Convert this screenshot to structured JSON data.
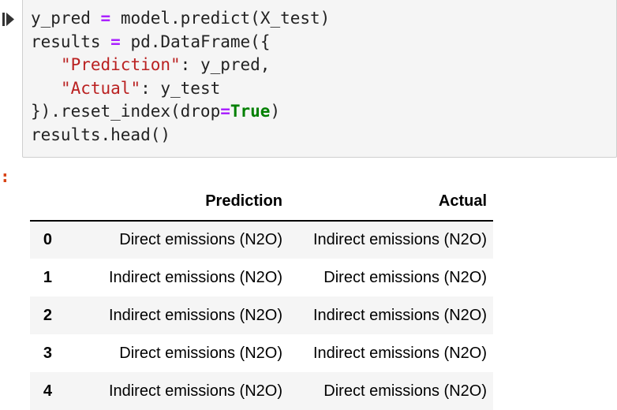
{
  "cell": {
    "code_lines": {
      "l1": {
        "a": "y_pred ",
        "op": "=",
        "b": " model.predict(X_test)"
      },
      "l2": {
        "a": "results ",
        "op": "=",
        "b": " pd.DataFrame({"
      },
      "l3": {
        "indent": "   ",
        "str": "\"Prediction\"",
        "b": ": y_pred,"
      },
      "l4": {
        "indent": "   ",
        "str": "\"Actual\"",
        "b": ": y_test"
      },
      "l5": {
        "a": "}).reset_index(drop",
        "op": "=",
        "kw": "True",
        "b": ")"
      },
      "l6": {
        "a": "results.head()"
      }
    },
    "output_prompt": ":"
  },
  "table": {
    "columns": [
      "",
      "Prediction",
      "Actual"
    ],
    "rows": [
      {
        "index": "0",
        "prediction": "Direct emissions (N2O)",
        "actual": "Indirect emissions (N2O)"
      },
      {
        "index": "1",
        "prediction": "Indirect emissions (N2O)",
        "actual": "Direct emissions (N2O)"
      },
      {
        "index": "2",
        "prediction": "Indirect emissions (N2O)",
        "actual": "Indirect emissions (N2O)"
      },
      {
        "index": "3",
        "prediction": "Direct emissions (N2O)",
        "actual": "Indirect emissions (N2O)"
      },
      {
        "index": "4",
        "prediction": "Indirect emissions (N2O)",
        "actual": "Direct emissions (N2O)"
      }
    ]
  },
  "colors": {
    "operator": "#aa22ff",
    "string": "#ba2121",
    "keyword": "#008000",
    "prompt": "#d84315",
    "cell_background": "#f5f5f5"
  },
  "icons": {
    "run": "run-cell-icon"
  }
}
